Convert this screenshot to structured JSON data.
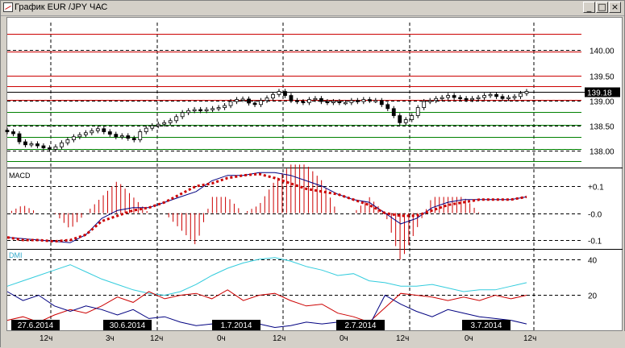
{
  "window": {
    "title": "График EUR /JPY  ЧАС",
    "minimize_label": "_",
    "maximize_label": "□",
    "close_label": "×"
  },
  "colors": {
    "background": "#ffffff",
    "candle": "#000000",
    "level_red": "#cc0000",
    "level_green": "#008000",
    "macd_line": "#000080",
    "macd_signal": "#cc0000",
    "dmi_adx": "#33ccdd",
    "dmi_plus": "#cc0000",
    "dmi_minus": "#000080",
    "grid": "#000000"
  },
  "chart_data": [
    {
      "type": "candlestick",
      "panel": "price",
      "ylim": [
        137.7,
        140.55
      ],
      "y_ticks": [
        "140.00",
        "139.50",
        "139.00",
        "138.50",
        "138.00"
      ],
      "y_tick_values": [
        140.0,
        139.5,
        139.0,
        138.5,
        138.0
      ],
      "last_price_label": "139.18",
      "last_price": 139.18,
      "red_levels": [
        140.32,
        139.97,
        139.5,
        139.28,
        139.02
      ],
      "green_levels": [
        138.78,
        138.52,
        138.27,
        138.03,
        137.8
      ],
      "close": [
        138.38,
        138.34,
        138.18,
        138.12,
        138.14,
        138.1,
        138.06,
        138.03,
        138.08,
        138.16,
        138.22,
        138.28,
        138.32,
        138.36,
        138.4,
        138.44,
        138.38,
        138.33,
        138.28,
        138.3,
        138.25,
        138.22,
        138.38,
        138.45,
        138.5,
        138.53,
        138.56,
        138.6,
        138.68,
        138.76,
        138.8,
        138.82,
        138.8,
        138.82,
        138.84,
        138.86,
        138.9,
        138.98,
        139.02,
        139.03,
        138.95,
        138.92,
        139.0,
        139.05,
        139.12,
        139.18,
        139.1,
        139.0,
        138.98,
        138.96,
        139.02,
        139.04,
        138.98,
        138.96,
        138.98,
        138.96,
        138.96,
        139.0,
        138.98,
        139.02,
        139.0,
        139.0,
        138.92,
        138.84,
        138.7,
        138.56,
        138.62,
        138.7,
        138.86,
        138.98,
        139.0,
        139.04,
        139.06,
        139.1,
        139.06,
        139.04,
        139.02,
        139.04,
        139.06,
        139.1,
        139.12,
        139.08,
        139.04,
        139.06,
        139.08,
        139.14,
        139.18
      ]
    },
    {
      "type": "line",
      "panel": "MACD",
      "title": "MACD",
      "ylim": [
        -0.13,
        0.16
      ],
      "y_ticks": [
        "+0.1",
        "-0.0",
        "-0.1"
      ],
      "y_tick_values": [
        0.1,
        0.0,
        -0.1
      ],
      "series": [
        {
          "values": [
            -0.09,
            -0.095,
            -0.1,
            -0.105,
            -0.11,
            -0.08,
            -0.02,
            0.01,
            0.02,
            0.02,
            0.04,
            0.06,
            0.08,
            0.12,
            0.14,
            0.14,
            0.15,
            0.15,
            0.14,
            0.12,
            0.1,
            0.07,
            0.05,
            0.04,
            0.0,
            -0.04,
            -0.02,
            0.02,
            0.04,
            0.05,
            0.05,
            0.05,
            0.05,
            0.06
          ]
        },
        {
          "values": [
            -0.09,
            -0.1,
            -0.1,
            -0.105,
            -0.1,
            -0.08,
            -0.03,
            -0.01,
            0.01,
            0.02,
            0.04,
            0.07,
            0.1,
            0.11,
            0.13,
            0.14,
            0.145,
            0.13,
            0.11,
            0.09,
            0.08,
            0.07,
            0.05,
            0.03,
            0.0,
            -0.01,
            -0.01,
            0.01,
            0.03,
            0.04,
            0.05,
            0.05,
            0.05,
            0.06
          ]
        }
      ]
    },
    {
      "type": "line",
      "panel": "DMI",
      "title": "DMI",
      "ylim": [
        0,
        44
      ],
      "y_ticks": [
        "40",
        "20"
      ],
      "y_tick_values": [
        40,
        20
      ],
      "series": [
        {
          "values": [
            25,
            28,
            31,
            34,
            37,
            33,
            29,
            26,
            23,
            21,
            20,
            22,
            26,
            31,
            35,
            38,
            40,
            41,
            39,
            36,
            34,
            31,
            32,
            28,
            27,
            25,
            25,
            26,
            24,
            22,
            23,
            23,
            25,
            27
          ]
        },
        {
          "values": [
            6,
            8,
            5,
            9,
            12,
            10,
            14,
            19,
            16,
            22,
            18,
            20,
            21,
            18,
            23,
            17,
            20,
            21,
            17,
            14,
            15,
            10,
            8,
            5,
            13,
            21,
            20,
            19,
            17,
            19,
            17,
            20,
            18,
            20
          ]
        },
        {
          "values": [
            22,
            17,
            20,
            14,
            11,
            14,
            12,
            9,
            12,
            7,
            8,
            5,
            3,
            4,
            3,
            5,
            4,
            2,
            3,
            5,
            4,
            5,
            4,
            3,
            20,
            15,
            11,
            8,
            12,
            10,
            8,
            7,
            6,
            4
          ]
        }
      ]
    }
  ],
  "time_axis": {
    "dates": [
      "27.6.2014",
      "30.6.2014",
      "1.7.2014",
      "2.7.2014",
      "3.7.2014"
    ],
    "hours": [
      "12ч",
      "3ч",
      "12ч",
      "0ч",
      "12ч",
      "0ч",
      "12ч",
      "0ч",
      "12ч"
    ]
  }
}
